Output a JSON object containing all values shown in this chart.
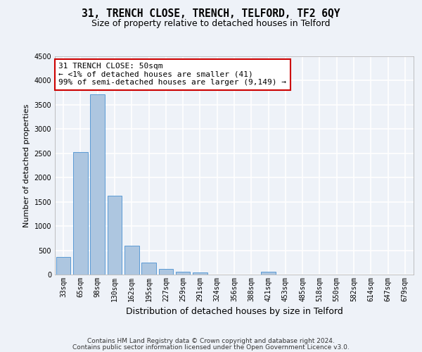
{
  "title": "31, TRENCH CLOSE, TRENCH, TELFORD, TF2 6QY",
  "subtitle": "Size of property relative to detached houses in Telford",
  "xlabel": "Distribution of detached houses by size in Telford",
  "ylabel": "Number of detached properties",
  "categories": [
    "33sqm",
    "65sqm",
    "98sqm",
    "130sqm",
    "162sqm",
    "195sqm",
    "227sqm",
    "259sqm",
    "291sqm",
    "324sqm",
    "356sqm",
    "388sqm",
    "421sqm",
    "453sqm",
    "485sqm",
    "518sqm",
    "550sqm",
    "582sqm",
    "614sqm",
    "647sqm",
    "679sqm"
  ],
  "values": [
    370,
    2520,
    3720,
    1630,
    600,
    240,
    110,
    65,
    50,
    0,
    0,
    0,
    60,
    0,
    0,
    0,
    0,
    0,
    0,
    0,
    0
  ],
  "bar_color": "#adc6e0",
  "bar_edge_color": "#5b9bd5",
  "ylim": [
    0,
    4500
  ],
  "yticks": [
    0,
    500,
    1000,
    1500,
    2000,
    2500,
    3000,
    3500,
    4000,
    4500
  ],
  "annotation_text": "31 TRENCH CLOSE: 50sqm\n← <1% of detached houses are smaller (41)\n99% of semi-detached houses are larger (9,149) →",
  "annotation_box_color": "#ffffff",
  "annotation_box_edgecolor": "#cc0000",
  "footer_line1": "Contains HM Land Registry data © Crown copyright and database right 2024.",
  "footer_line2": "Contains public sector information licensed under the Open Government Licence v3.0.",
  "background_color": "#eef2f8",
  "plot_background_color": "#eef2f8",
  "grid_color": "#ffffff",
  "title_fontsize": 10.5,
  "subtitle_fontsize": 9,
  "xlabel_fontsize": 9,
  "ylabel_fontsize": 8,
  "tick_fontsize": 7,
  "footer_fontsize": 6.5,
  "annotation_fontsize": 8
}
